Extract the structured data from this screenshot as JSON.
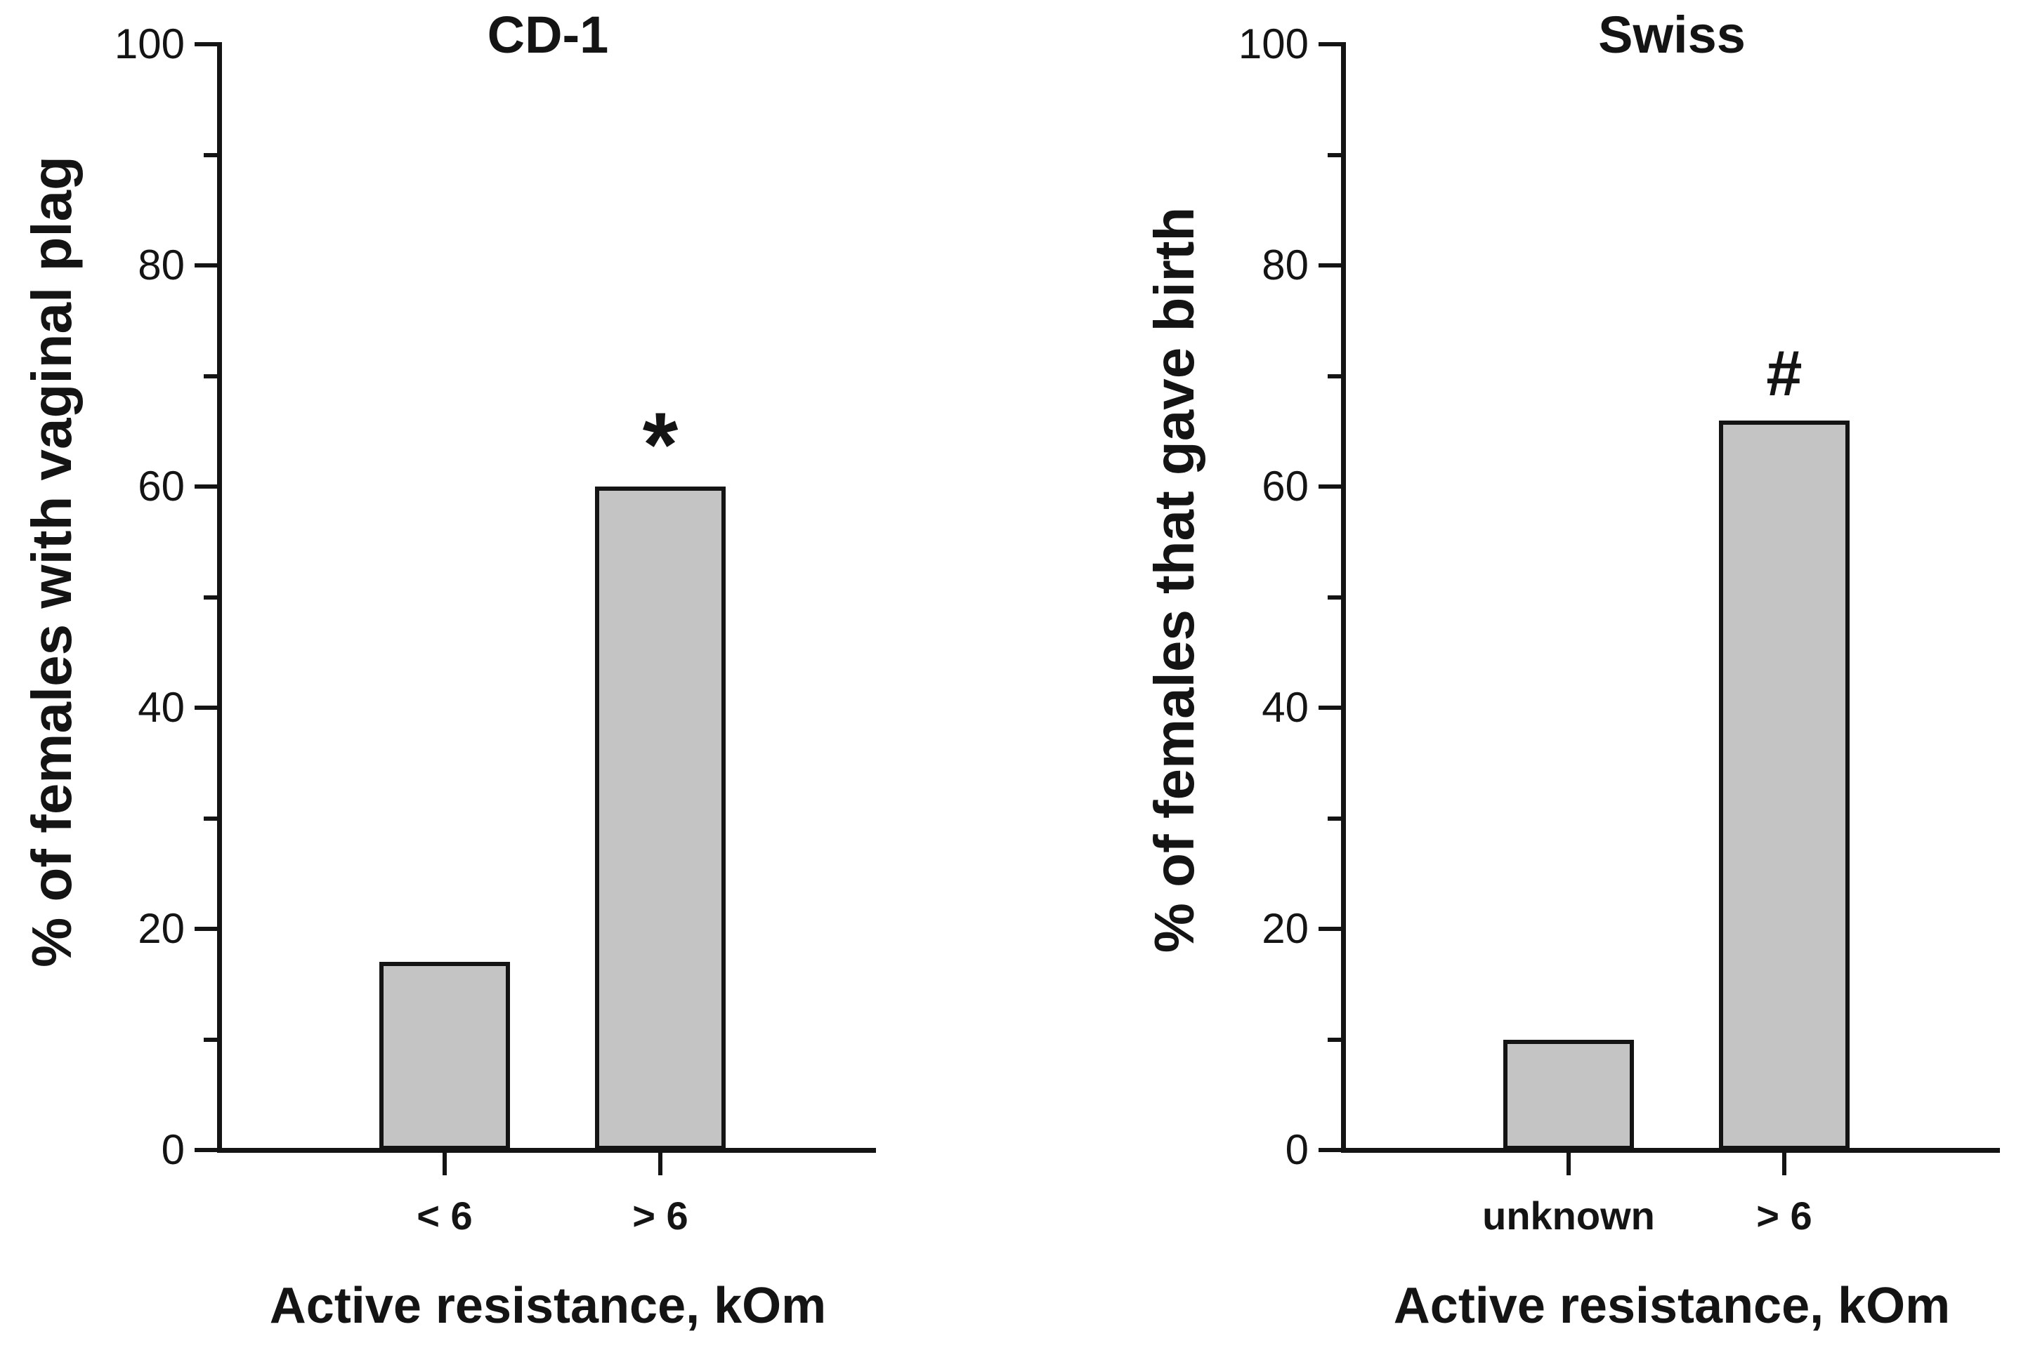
{
  "figure": {
    "background": "#ffffff",
    "text_color": "#141414",
    "panel_count": 2
  },
  "chart_data": [
    {
      "type": "bar",
      "title": "CD-1",
      "ylabel": "% of females with vaginal plag",
      "xlabel": "Active resistance, kOm",
      "categories": [
        "< 6",
        "> 6"
      ],
      "values": [
        17,
        60
      ],
      "annotations": [
        {
          "category": "> 6",
          "symbol": "*"
        }
      ],
      "ylim": [
        0,
        100
      ],
      "yticks": [
        0,
        20,
        40,
        60,
        80,
        100
      ],
      "yticks_minor": [
        10,
        30,
        50,
        70,
        90
      ],
      "grid": false,
      "legend": "none",
      "bar_fill": "#c4c4c4",
      "bar_border": "#141414"
    },
    {
      "type": "bar",
      "title": "Swiss",
      "ylabel": "% of females that gave birth",
      "xlabel": "Active resistance, kOm",
      "categories": [
        "unknown",
        "> 6"
      ],
      "values": [
        10,
        66
      ],
      "annotations": [
        {
          "category": "> 6",
          "symbol": "#"
        }
      ],
      "ylim": [
        0,
        100
      ],
      "yticks": [
        0,
        20,
        40,
        60,
        80,
        100
      ],
      "yticks_minor": [
        10,
        30,
        50,
        70,
        90
      ],
      "grid": false,
      "legend": "none",
      "bar_fill": "#c4c4c4",
      "bar_border": "#141414"
    }
  ]
}
